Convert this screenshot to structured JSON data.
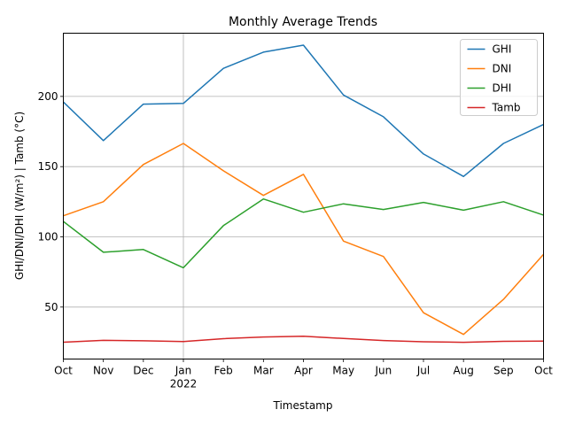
{
  "chart_data": {
    "type": "line",
    "title": "Monthly Average Trends",
    "xlabel": "Timestamp",
    "ylabel": "GHI/DNI/DHI (W/m²) | Tamb (°C)",
    "categories": [
      "Oct",
      "Nov",
      "Dec",
      "Jan",
      "Feb",
      "Mar",
      "Apr",
      "May",
      "Jun",
      "Jul",
      "Aug",
      "Sep",
      "Oct"
    ],
    "year_label": "2022",
    "year_label_index": 3,
    "ylim": [
      13,
      245
    ],
    "yticks": [
      50,
      100,
      150,
      200
    ],
    "grid": true,
    "legend_position": "top-right",
    "series": [
      {
        "name": "GHI",
        "color": "#1f77b4",
        "values": [
          196,
          168.5,
          194.5,
          195,
          220,
          231.5,
          236.5,
          201,
          185.5,
          159,
          143,
          166.5,
          180
        ]
      },
      {
        "name": "DNI",
        "color": "#ff7f0e",
        "values": [
          115,
          125,
          151.5,
          166.5,
          147,
          129.5,
          144.5,
          97,
          86,
          46,
          30.5,
          55.5,
          87.5
        ]
      },
      {
        "name": "DHI",
        "color": "#2ca02c",
        "values": [
          111,
          89,
          91,
          78,
          108,
          127,
          117.5,
          123.5,
          119.5,
          124.5,
          119,
          125,
          115.5
        ]
      },
      {
        "name": "Tamb",
        "color": "#d62728",
        "values": [
          25,
          26.3,
          26,
          25.5,
          27.5,
          28.7,
          29.2,
          27.6,
          26.2,
          25.3,
          24.9,
          25.6,
          25.8
        ]
      }
    ]
  }
}
